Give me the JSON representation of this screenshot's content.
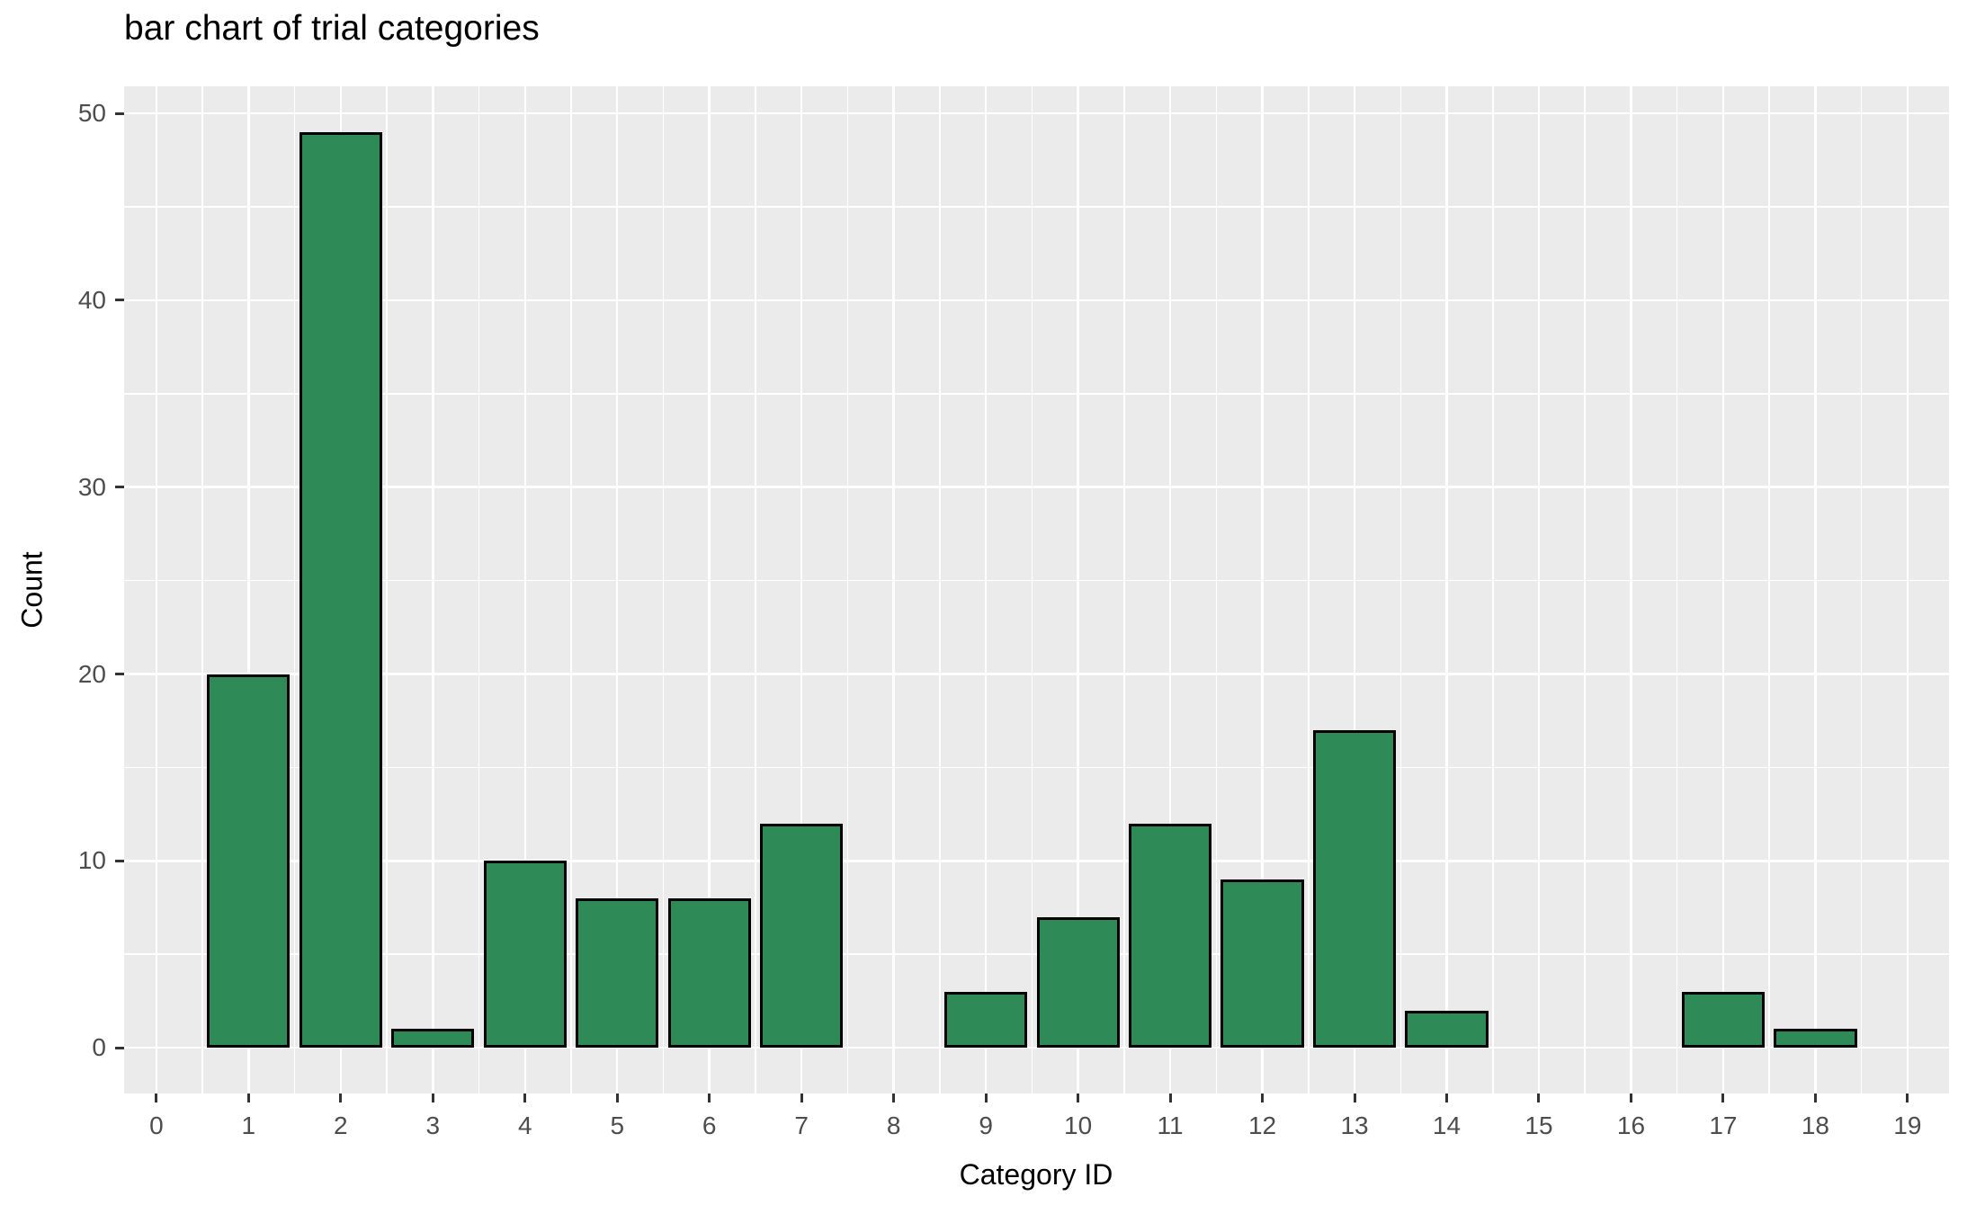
{
  "title": "bar chart of trial categories",
  "chart_data": {
    "type": "bar",
    "title": "bar chart of trial categories",
    "xlabel": "Category ID",
    "ylabel": "Count",
    "x": [
      1,
      2,
      3,
      4,
      5,
      6,
      7,
      8,
      9,
      10,
      11,
      12,
      13,
      14,
      15,
      16,
      17,
      18
    ],
    "values": [
      20,
      49,
      1,
      10,
      8,
      8,
      12,
      0,
      3,
      7,
      12,
      9,
      17,
      2,
      0,
      0,
      3,
      1
    ],
    "x_ticks": [
      0,
      1,
      2,
      3,
      4,
      5,
      6,
      7,
      8,
      9,
      10,
      11,
      12,
      13,
      14,
      15,
      16,
      17,
      18,
      19
    ],
    "y_ticks": [
      0,
      10,
      20,
      30,
      40,
      50
    ],
    "y_minor_ticks": [
      5,
      15,
      25,
      35,
      45
    ],
    "xlim": [
      -0.35,
      19.45
    ],
    "ylim": [
      -2.45,
      51.45
    ],
    "bar_width": 0.9,
    "grid": true,
    "legend": false,
    "colors": {
      "bar_fill": "#2e8b57",
      "bar_stroke": "#000000",
      "panel_background": "#ebebeb",
      "gridline": "#ffffff",
      "tick_label": "#4d4d4d",
      "axis_title": "#000000",
      "plot_title": "#000000"
    }
  }
}
